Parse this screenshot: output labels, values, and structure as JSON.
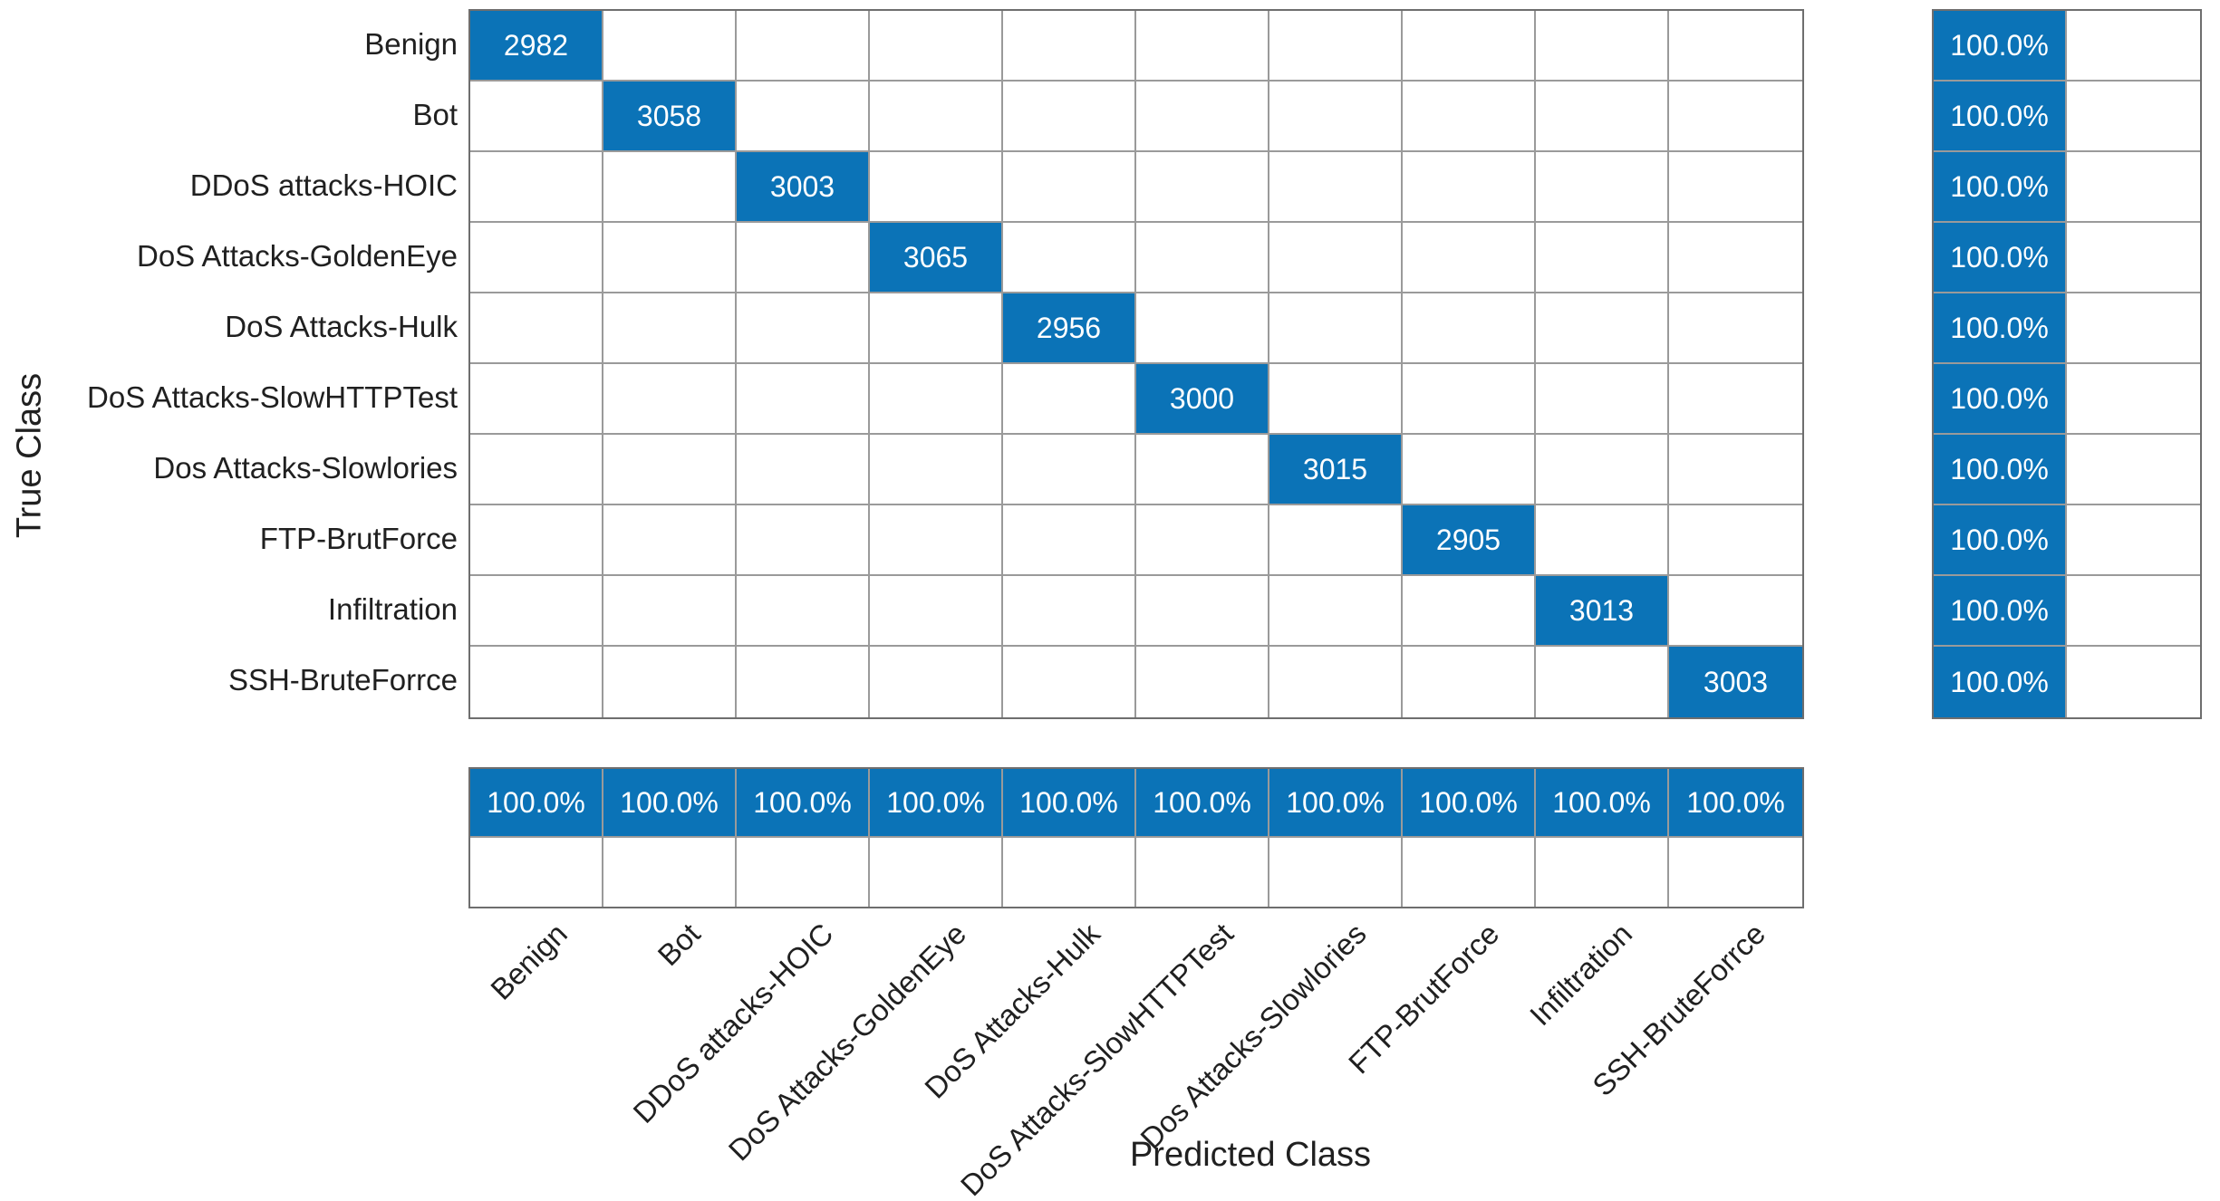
{
  "chart_data": {
    "type": "heatmap",
    "variant": "confusion-matrix",
    "title": "",
    "xlabel": "Predicted Class",
    "ylabel": "True Class",
    "classes": [
      "Benign",
      "Bot",
      "DDoS attacks-HOIC",
      "DoS Attacks-GoldenEye",
      "DoS Attacks-Hulk",
      "DoS Attacks-SlowHTTPTest",
      "Dos Attacks-Slowlories",
      "FTP-BrutForce",
      "Infiltration",
      "SSH-BruteForrce"
    ],
    "diagonal_values": [
      2982,
      3058,
      3003,
      3065,
      2956,
      3000,
      3015,
      2905,
      3013,
      3003
    ],
    "off_diagonal_display": "",
    "row_summary": {
      "position": "right",
      "correct": [
        "100.0%",
        "100.0%",
        "100.0%",
        "100.0%",
        "100.0%",
        "100.0%",
        "100.0%",
        "100.0%",
        "100.0%",
        "100.0%"
      ],
      "incorrect": [
        "",
        "",
        "",
        "",
        "",
        "",
        "",
        "",
        "",
        ""
      ]
    },
    "column_summary": {
      "position": "bottom",
      "correct": [
        "100.0%",
        "100.0%",
        "100.0%",
        "100.0%",
        "100.0%",
        "100.0%",
        "100.0%",
        "100.0%",
        "100.0%",
        "100.0%"
      ],
      "incorrect": [
        "",
        "",
        "",
        "",
        "",
        "",
        "",
        "",
        "",
        ""
      ]
    },
    "grid": true,
    "colors": {
      "diagonal_fill": "#0b73b7",
      "summary_fill": "#0b73b7",
      "empty_fill": "#ffffff",
      "grid_line": "#9a9a9a",
      "outer_border": "#6e6e6e",
      "cell_text": "#ffffff",
      "axis_text": "#202020"
    }
  }
}
